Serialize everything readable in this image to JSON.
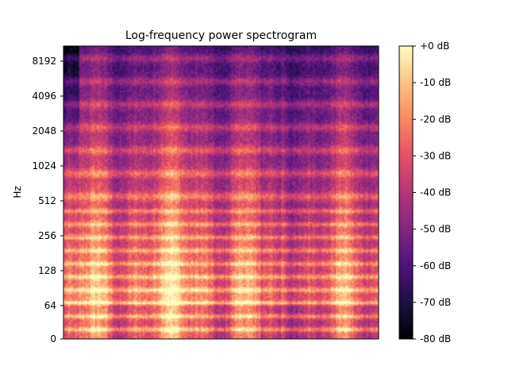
{
  "chart_data": {
    "type": "heatmap",
    "title": "Log-frequency power spectrogram",
    "ylabel": "Hz",
    "xlabel": "",
    "y_scale": "log2",
    "y_ticks": [
      0,
      64,
      128,
      256,
      512,
      1024,
      2048,
      4096,
      8192
    ],
    "y_tick_labels": [
      "0",
      "64",
      "128",
      "256",
      "512",
      "1024",
      "2048",
      "4096",
      "8192"
    ],
    "colorbar": {
      "colormap": "magma",
      "range": [
        -80,
        0
      ],
      "ticks": [
        0,
        -10,
        -20,
        -30,
        -40,
        -50,
        -60,
        -70,
        -80
      ],
      "tick_labels": [
        "+0 dB",
        "-10 dB",
        "-20 dB",
        "-30 dB",
        "-40 dB",
        "-50 dB",
        "-60 dB",
        "-70 dB",
        "-80 dB"
      ]
    },
    "grid": false,
    "legend": "none"
  }
}
